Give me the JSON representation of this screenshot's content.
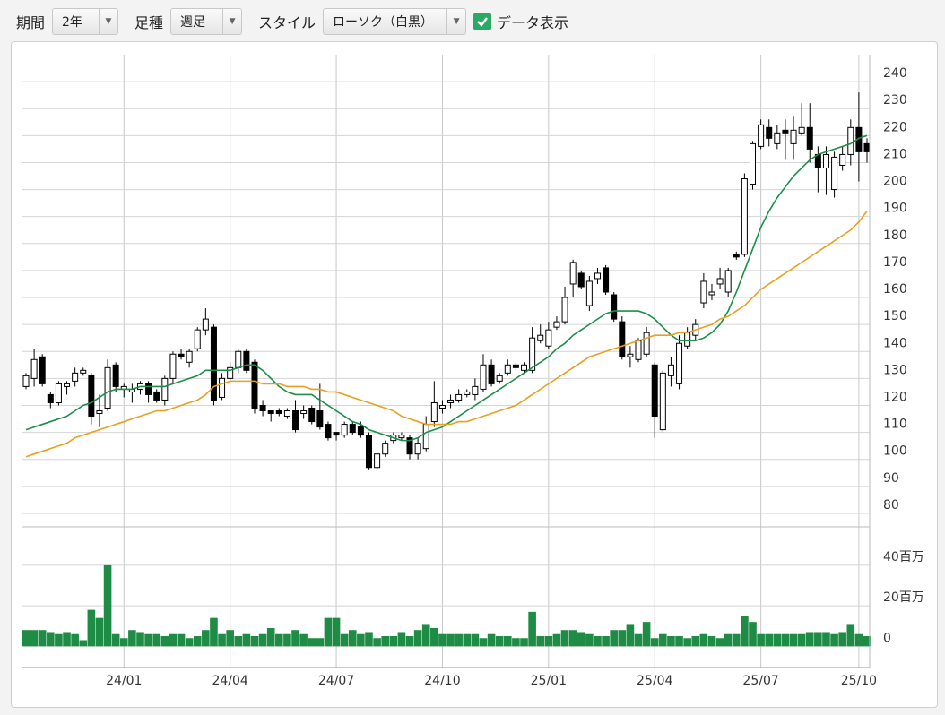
{
  "toolbar": {
    "period_label": "期間",
    "period_value": "2年",
    "bar_type_label": "足種",
    "bar_type_value": "週足",
    "style_label": "スタイル",
    "style_value": "ローソク（白黒）",
    "data_display_label": "データ表示",
    "data_display_checked": true
  },
  "chart_data": [
    {
      "type": "candlestick",
      "categories": [
        null,
        null,
        null,
        null,
        null,
        null,
        null,
        null,
        null,
        null,
        null,
        null,
        "24/01",
        null,
        null,
        null,
        null,
        null,
        null,
        null,
        null,
        null,
        null,
        null,
        null,
        "24/04",
        null,
        null,
        null,
        null,
        null,
        null,
        null,
        null,
        null,
        null,
        null,
        null,
        "24/07",
        null,
        null,
        null,
        null,
        null,
        null,
        null,
        null,
        null,
        null,
        null,
        null,
        "24/10",
        null,
        null,
        null,
        null,
        null,
        null,
        null,
        null,
        null,
        null,
        null,
        null,
        "25/01",
        null,
        null,
        null,
        null,
        null,
        null,
        null,
        null,
        null,
        null,
        null,
        null,
        "25/04",
        null,
        null,
        null,
        null,
        null,
        null,
        null,
        null,
        null,
        null,
        null,
        null,
        "25/07",
        null,
        null,
        null,
        null,
        null,
        null,
        null,
        null,
        null,
        null,
        null,
        "25/10",
        null
      ],
      "open": [
        127,
        130,
        138,
        124,
        121,
        127,
        129,
        132,
        131,
        117,
        119,
        135,
        126,
        125,
        126,
        128,
        125,
        122,
        130,
        139,
        136,
        141,
        148,
        149,
        123,
        130,
        134,
        140,
        136,
        120,
        118,
        118,
        116,
        118,
        117,
        119,
        118,
        113,
        110,
        109,
        113,
        112,
        109,
        97,
        102,
        107,
        108,
        108,
        102,
        104,
        114,
        119,
        121,
        122,
        124,
        124,
        126,
        135,
        129,
        132,
        135,
        133,
        133,
        144,
        142,
        149,
        151,
        165,
        169,
        157,
        167,
        171,
        161,
        151,
        138,
        137,
        139,
        135,
        111,
        131,
        128,
        142,
        146,
        158,
        161,
        165,
        162,
        176,
        176,
        202,
        216,
        223,
        217,
        222,
        217,
        221,
        223,
        213,
        208,
        200,
        209,
        213,
        223,
        217
      ],
      "high": [
        132,
        141,
        139,
        125,
        129,
        129,
        134,
        134,
        132,
        124,
        137,
        136,
        128,
        128,
        129,
        129,
        126,
        131,
        140,
        141,
        141,
        149,
        156,
        150,
        132,
        136,
        141,
        141,
        137,
        122,
        118,
        119,
        119,
        122,
        120,
        120,
        128,
        114,
        110,
        114,
        114,
        114,
        110,
        103,
        107,
        110,
        110,
        109,
        108,
        116,
        129,
        122,
        124,
        126,
        126,
        130,
        139,
        137,
        132,
        137,
        136,
        136,
        149,
        150,
        151,
        153,
        164,
        174,
        170,
        168,
        171,
        172,
        162,
        153,
        142,
        145,
        149,
        136,
        133,
        138,
        146,
        149,
        152,
        169,
        165,
        171,
        171,
        177,
        206,
        218,
        226,
        226,
        224,
        226,
        227,
        232,
        232,
        216,
        216,
        214,
        216,
        226,
        236,
        219
      ],
      "low": [
        126,
        127,
        127,
        119,
        120,
        124,
        127,
        131,
        113,
        112,
        118,
        125,
        123,
        121,
        124,
        121,
        121,
        120,
        128,
        137,
        134,
        140,
        146,
        120,
        122,
        129,
        132,
        132,
        117,
        116,
        114,
        116,
        115,
        110,
        115,
        113,
        111,
        107,
        107,
        108,
        109,
        108,
        96,
        96,
        101,
        106,
        107,
        100,
        100,
        103,
        112,
        117,
        119,
        121,
        123,
        122,
        125,
        127,
        128,
        131,
        133,
        132,
        132,
        143,
        141,
        148,
        150,
        160,
        163,
        155,
        165,
        161,
        151,
        137,
        134,
        136,
        138,
        108,
        110,
        127,
        126,
        141,
        144,
        156,
        159,
        163,
        160,
        174,
        175,
        200,
        215,
        216,
        215,
        211,
        211,
        220,
        210,
        199,
        198,
        197,
        207,
        209,
        203,
        210
      ],
      "close": [
        131,
        137,
        128,
        121,
        128,
        128,
        132,
        133,
        116,
        118,
        134,
        127,
        127,
        126,
        128,
        124,
        122,
        130,
        139,
        138,
        140,
        148,
        152,
        122,
        130,
        134,
        140,
        133,
        119,
        118,
        117,
        117,
        118,
        111,
        118,
        114,
        112,
        108,
        109,
        113,
        110,
        109,
        97,
        102,
        106,
        109,
        109,
        102,
        106,
        113,
        121,
        120,
        122,
        124,
        125,
        127,
        135,
        128,
        131,
        135,
        134,
        135,
        145,
        146,
        148,
        151,
        160,
        173,
        164,
        166,
        169,
        162,
        152,
        138,
        139,
        144,
        147,
        116,
        132,
        135,
        143,
        147,
        150,
        166,
        162,
        167,
        170,
        175,
        204,
        217,
        224,
        219,
        221,
        221,
        222,
        223,
        215,
        208,
        213,
        212,
        213,
        223,
        214,
        214
      ],
      "up_color": "#ffffff",
      "down_color": "#000000",
      "series": [
        {
          "color": "#1a8f4a",
          "values": [
            111,
            112,
            113,
            114,
            115,
            116,
            118,
            120,
            121,
            123,
            125,
            126,
            126,
            126,
            127,
            127,
            127,
            127,
            128,
            129,
            130,
            131,
            133,
            133,
            133,
            133,
            134,
            135,
            135,
            133,
            130,
            127,
            125,
            124,
            124,
            124,
            122,
            120,
            118,
            116,
            114,
            113,
            111,
            110,
            109,
            108,
            107,
            107,
            108,
            110,
            111,
            112,
            114,
            116,
            118,
            120,
            122,
            124,
            126,
            128,
            130,
            132,
            134,
            136,
            138,
            141,
            143,
            146,
            148,
            150,
            152,
            154,
            155,
            155,
            155,
            155,
            154,
            152,
            149,
            146,
            144,
            144,
            144,
            145,
            147,
            150,
            155,
            162,
            170,
            178,
            186,
            192,
            197,
            201,
            205,
            208,
            211,
            213,
            214,
            215,
            216,
            217,
            219,
            220
          ]
        },
        {
          "color": "#e8a020",
          "values": [
            101,
            102,
            103,
            104,
            105,
            106,
            108,
            109,
            110,
            111,
            112,
            113,
            114,
            115,
            116,
            117,
            118,
            118,
            119,
            120,
            121,
            122,
            124,
            127,
            128,
            129,
            129,
            129,
            129,
            128,
            128,
            128,
            127,
            127,
            127,
            126,
            126,
            125,
            125,
            124,
            123,
            122,
            121,
            120,
            119,
            118,
            116,
            115,
            114,
            113,
            113,
            113,
            113,
            114,
            114,
            115,
            116,
            117,
            118,
            119,
            120,
            122,
            124,
            126,
            128,
            130,
            132,
            134,
            136,
            138,
            139,
            140,
            141,
            142,
            143,
            144,
            145,
            146,
            146,
            146,
            147,
            147,
            148,
            149,
            150,
            152,
            153,
            155,
            157,
            160,
            163,
            165,
            167,
            169,
            171,
            173,
            175,
            177,
            179,
            181,
            183,
            185,
            188,
            192
          ]
        }
      ],
      "ylim": [
        75,
        250
      ],
      "yticks": [
        80,
        90,
        100,
        110,
        120,
        130,
        140,
        150,
        160,
        170,
        180,
        190,
        200,
        210,
        220,
        230,
        240
      ],
      "grid": true
    },
    {
      "type": "bar",
      "color": "#1e8c45",
      "values": [
        8,
        8,
        8,
        7,
        6,
        7,
        6,
        3,
        18,
        14,
        40,
        6,
        4,
        8,
        7,
        6,
        6,
        5,
        6,
        6,
        4,
        5,
        8,
        14,
        6,
        8,
        5,
        6,
        5,
        6,
        9,
        6,
        6,
        8,
        6,
        4,
        4,
        14,
        14,
        6,
        8,
        6,
        7,
        4,
        5,
        5,
        7,
        5,
        8,
        11,
        9,
        6,
        6,
        6,
        6,
        6,
        4,
        6,
        5,
        5,
        4,
        4,
        17,
        5,
        5,
        6,
        8,
        8,
        7,
        6,
        5,
        5,
        8,
        8,
        11,
        6,
        12,
        4,
        6,
        5,
        5,
        4,
        5,
        6,
        5,
        4,
        6,
        6,
        15,
        12,
        6,
        6,
        6,
        6,
        6,
        6,
        7,
        7,
        7,
        6,
        7,
        11,
        6,
        5
      ],
      "ylim": [
        -10.5,
        59
      ],
      "yticks": [
        0,
        {
          "value": 20,
          "label": "20百万"
        },
        {
          "value": 40,
          "label": "40百万"
        }
      ],
      "grid": true
    }
  ]
}
